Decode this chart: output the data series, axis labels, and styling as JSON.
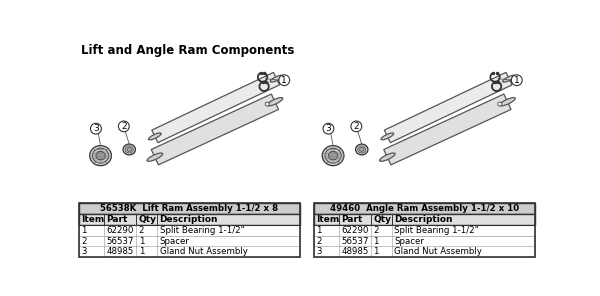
{
  "title": "Lift and Angle Ram Components",
  "background_color": "#ffffff",
  "table1_title": "56538K  Lift Ram Assembly 1-1/2 x 8",
  "table2_title": "49460  Angle Ram Assembly 1-1/2 x 10",
  "col_headers": [
    "Item",
    "Part",
    "Qty",
    "Description"
  ],
  "table1_rows": [
    [
      "1",
      "62290",
      "2",
      "Split Bearing 1-1/2\""
    ],
    [
      "2",
      "56537",
      "1",
      "Spacer"
    ],
    [
      "3",
      "48985",
      "1",
      "Gland Nut Assembly"
    ]
  ],
  "table2_rows": [
    [
      "1",
      "62290",
      "2",
      "Split Bearing 1-1/2\""
    ],
    [
      "2",
      "56537",
      "1",
      "Spacer"
    ],
    [
      "3",
      "48985",
      "1",
      "Gland Nut Assembly"
    ]
  ],
  "tube_color": "#e8e8e8",
  "tube_edge": "#555555",
  "ring_face": "#cccccc",
  "ring_edge": "#444444",
  "label_edge": "#333333",
  "line_color": "#555555"
}
